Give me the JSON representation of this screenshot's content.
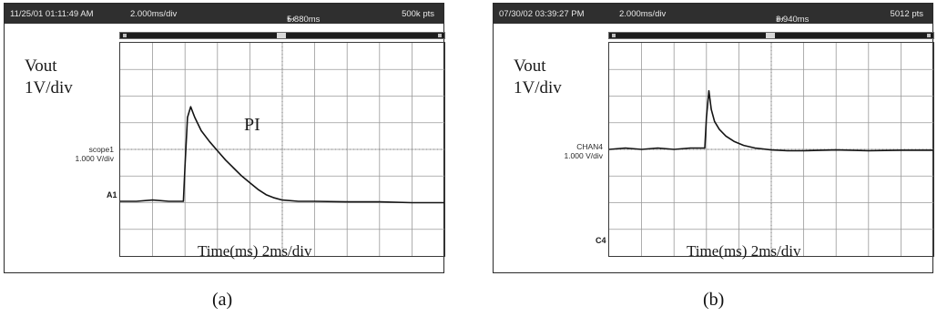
{
  "panels": [
    {
      "id": "a",
      "header": {
        "timestamp": "11/25/01 01:11:49 AM",
        "timebase": "2.000ms/div",
        "position": "5.880ms",
        "points": "500k pts"
      },
      "labels": {
        "vout": "Vout",
        "vdiv": "1V/div",
        "time": "Time(ms) 2ms/div",
        "annotation": "PI"
      },
      "channel": {
        "name": "scope1",
        "scale": "1.000 V/div",
        "marker": "A1"
      },
      "caption": "(a)"
    },
    {
      "id": "b",
      "header": {
        "timestamp": "07/30/02 03:39:27 PM",
        "timebase": "2.000ms/div",
        "position": "3.940ms",
        "points": "5012 pts"
      },
      "labels": {
        "vout": "Vout",
        "vdiv": "1V/div",
        "time": "Time(ms) 2ms/div"
      },
      "channel": {
        "name": "CHAN4",
        "scale": "1.000 V/div",
        "marker": "C4"
      },
      "caption": "(b)"
    }
  ],
  "chart_data": [
    {
      "type": "line",
      "xlabel": "Time(ms) 2ms/div",
      "ylabel": "Vout 1V/div",
      "grid": true,
      "xlim": [
        0,
        20
      ],
      "ylim": [
        0,
        8
      ],
      "series": [
        {
          "x": [
            0,
            1,
            2,
            3,
            3.9,
            4.0,
            4.15,
            4.35,
            4.6,
            5,
            5.5,
            6,
            6.5,
            7,
            7.5,
            8,
            8.5,
            9,
            9.5,
            10,
            11,
            12,
            14,
            16,
            18,
            20
          ],
          "y": [
            2.05,
            2.05,
            2.1,
            2.05,
            2.05,
            3.4,
            5.2,
            5.6,
            5.2,
            4.7,
            4.3,
            3.95,
            3.6,
            3.3,
            3.0,
            2.75,
            2.5,
            2.3,
            2.18,
            2.1,
            2.05,
            2.05,
            2.03,
            2.03,
            2.0,
            2.0
          ]
        }
      ]
    },
    {
      "type": "line",
      "xlabel": "Time(ms) 2ms/div",
      "ylabel": "Vout 1V/div",
      "grid": true,
      "xlim": [
        0,
        20
      ],
      "ylim": [
        0,
        8
      ],
      "series": [
        {
          "x": [
            0,
            1,
            2,
            3,
            4,
            5,
            5.9,
            6.0,
            6.15,
            6.3,
            6.5,
            6.8,
            7.2,
            7.7,
            8.3,
            9,
            10,
            11,
            12,
            14,
            16,
            18,
            20
          ],
          "y": [
            4.0,
            4.05,
            4.0,
            4.05,
            4.0,
            4.05,
            4.05,
            5.2,
            6.2,
            5.5,
            5.05,
            4.75,
            4.5,
            4.3,
            4.15,
            4.05,
            3.98,
            3.95,
            3.95,
            3.98,
            3.95,
            3.97,
            3.97
          ]
        }
      ]
    }
  ]
}
